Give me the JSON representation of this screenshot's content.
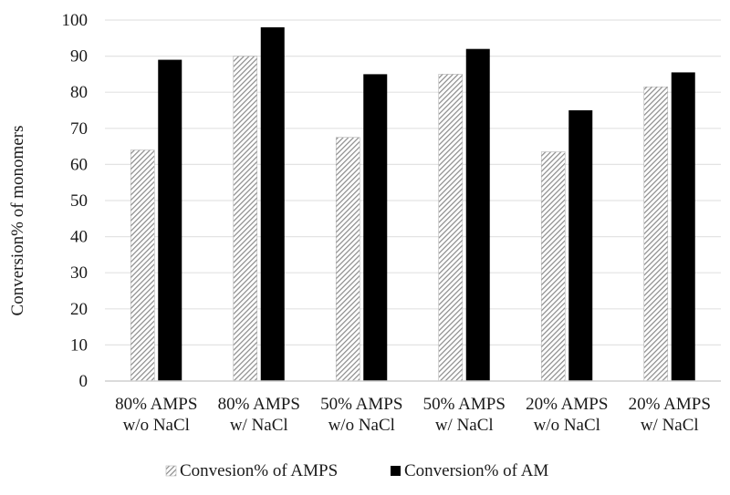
{
  "chart_data": {
    "type": "bar",
    "title": "",
    "ylabel": "Conversion% of monomers",
    "xlabel": "",
    "ylim": [
      0,
      100
    ],
    "yticks": [
      0,
      10,
      20,
      30,
      40,
      50,
      60,
      70,
      80,
      90,
      100
    ],
    "grid": "horizontal",
    "legend_position": "bottom",
    "categories": [
      [
        "80% AMPS",
        "w/o NaCl"
      ],
      [
        "80% AMPS",
        "w/ NaCl"
      ],
      [
        "50% AMPS",
        "w/o NaCl"
      ],
      [
        "50% AMPS",
        "w/ NaCl"
      ],
      [
        "20% AMPS",
        "w/o NaCl"
      ],
      [
        "20% AMPS",
        "w/ NaCl"
      ]
    ],
    "series": [
      {
        "name": "Convesion% of AMPS",
        "pattern": "hatched-gray",
        "color": "#9a9a9a",
        "values": [
          64,
          90,
          67.5,
          85,
          63.5,
          81.5
        ]
      },
      {
        "name": "Conversion% of AM",
        "pattern": "solid",
        "color": "#000000",
        "values": [
          89,
          98,
          85,
          92,
          75,
          85.5
        ]
      }
    ]
  }
}
